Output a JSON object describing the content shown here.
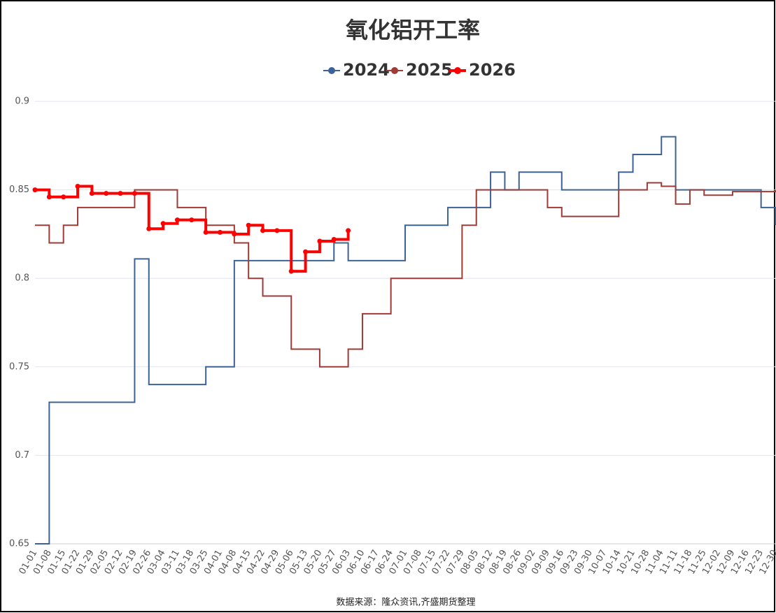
{
  "chart_data": {
    "type": "line",
    "title": "氧化铝开工率",
    "source": "数据来源：隆众资讯,齐盛期货整理",
    "step": true,
    "grid": true,
    "legend": "top",
    "categories": [
      "01-01",
      "01-08",
      "01-15",
      "01-22",
      "01-29",
      "02-05",
      "02-12",
      "02-19",
      "02-26",
      "03-04",
      "03-11",
      "03-18",
      "03-25",
      "04-01",
      "04-08",
      "04-15",
      "04-22",
      "04-29",
      "05-06",
      "05-13",
      "05-20",
      "05-27",
      "06-03",
      "06-10",
      "06-17",
      "06-24",
      "07-01",
      "07-08",
      "07-15",
      "07-22",
      "07-29",
      "08-05",
      "08-12",
      "08-19",
      "08-26",
      "09-02",
      "09-09",
      "09-16",
      "09-23",
      "09-30",
      "10-07",
      "10-14",
      "10-21",
      "10-28",
      "11-04",
      "11-11",
      "11-18",
      "11-25",
      "12-02",
      "12-09",
      "12-16",
      "12-23",
      "12-30"
    ],
    "ylim": [
      0.65,
      0.9
    ],
    "yticks": [
      0.65,
      0.7,
      0.75,
      0.8,
      0.85,
      0.9
    ],
    "series": [
      {
        "name": "2024",
        "color": "#3d6396",
        "values": [
          0.65,
          0.73,
          0.73,
          0.73,
          0.73,
          0.73,
          0.73,
          0.811,
          0.74,
          0.74,
          0.74,
          0.74,
          0.75,
          0.75,
          0.81,
          0.81,
          0.81,
          0.81,
          0.81,
          0.81,
          0.81,
          0.82,
          0.81,
          0.81,
          0.81,
          0.81,
          0.83,
          0.83,
          0.83,
          0.84,
          0.84,
          0.84,
          0.86,
          0.85,
          0.86,
          0.86,
          0.86,
          0.85,
          0.85,
          0.85,
          0.85,
          0.86,
          0.87,
          0.87,
          0.88,
          0.85,
          0.85,
          0.85,
          0.85,
          0.85,
          0.85,
          0.84,
          0.83
        ]
      },
      {
        "name": "2025",
        "color": "#9e3b36",
        "values": [
          0.83,
          0.82,
          0.83,
          0.84,
          0.84,
          0.84,
          0.84,
          0.85,
          0.85,
          0.85,
          0.84,
          0.84,
          0.83,
          0.83,
          0.82,
          0.8,
          0.79,
          0.79,
          0.76,
          0.76,
          0.75,
          0.75,
          0.76,
          0.78,
          0.78,
          0.8,
          0.8,
          0.8,
          0.8,
          0.8,
          0.83,
          0.85,
          0.85,
          0.85,
          0.85,
          0.85,
          0.84,
          0.835,
          0.835,
          0.835,
          0.835,
          0.85,
          0.85,
          0.854,
          0.852,
          0.842,
          0.85,
          0.847,
          0.847,
          0.849,
          0.849,
          0.849,
          0.85
        ]
      },
      {
        "name": "2026",
        "color": "#ff0000",
        "values": [
          0.85,
          0.846,
          0.846,
          0.852,
          0.848,
          0.848,
          0.848,
          0.848,
          0.828,
          0.831,
          0.833,
          0.833,
          0.826,
          0.826,
          0.825,
          0.83,
          0.827,
          0.827,
          0.804,
          0.815,
          0.821,
          0.822,
          0.827,
          null,
          null,
          null,
          null,
          null,
          null,
          null,
          null,
          null,
          null,
          null,
          null,
          null,
          null,
          null,
          null,
          null,
          null,
          null,
          null,
          null,
          null,
          null,
          null,
          null,
          null,
          null,
          null,
          null,
          null
        ]
      }
    ]
  }
}
